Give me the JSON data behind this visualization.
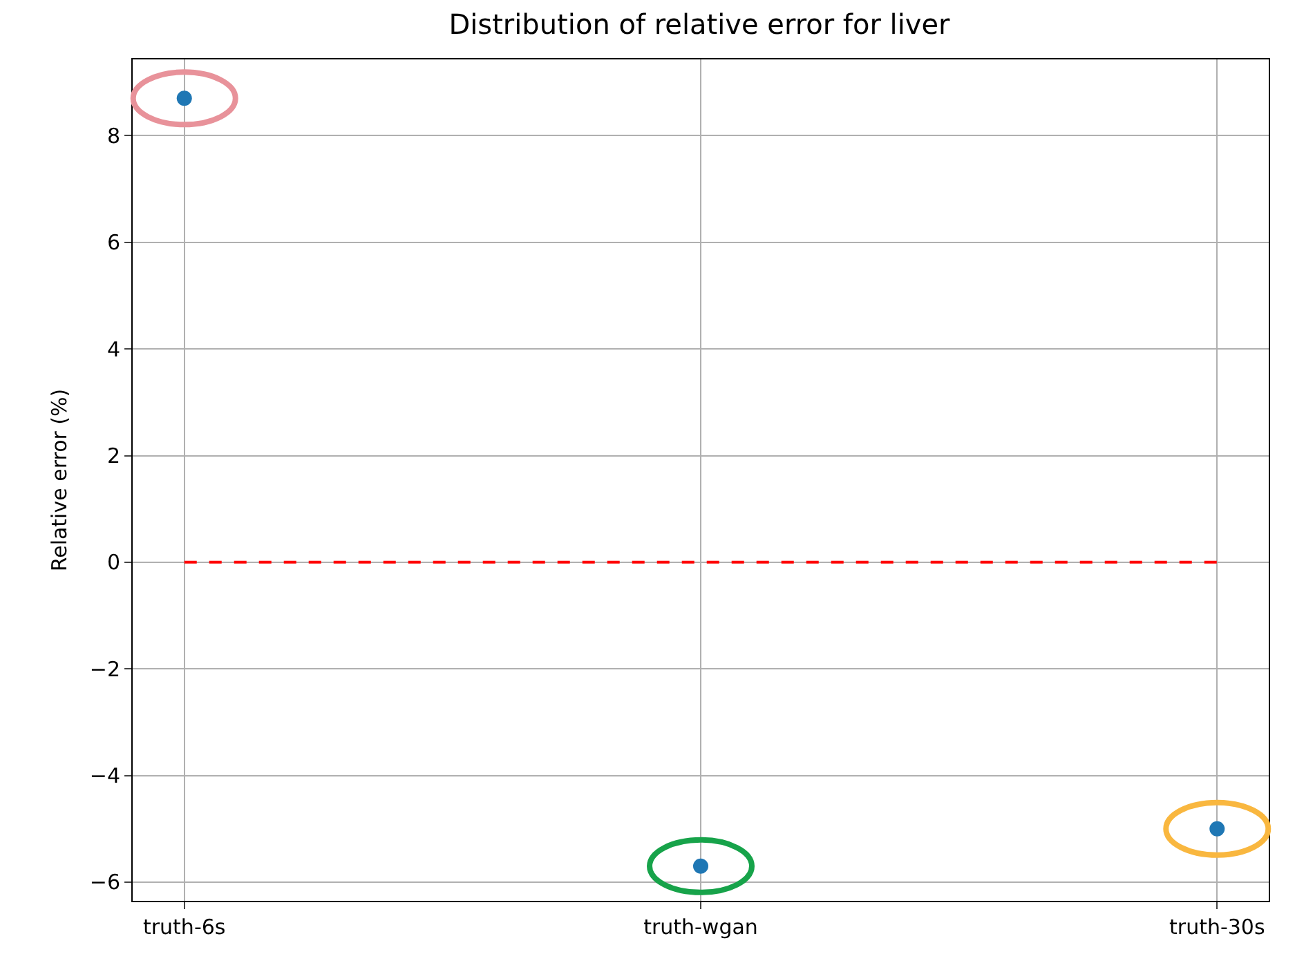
{
  "chart_data": {
    "type": "scatter",
    "title": "Distribution of relative error for liver",
    "ylabel": "Relative error (%)",
    "categories": [
      "truth-6s",
      "truth-wgan",
      "truth-30s"
    ],
    "series": [
      {
        "color": "#1f77b4",
        "values": [
          8.7,
          -5.7,
          -5.0
        ]
      }
    ],
    "ylim": [
      -6.35,
      9.43
    ],
    "yticks": [
      -6,
      -4,
      -2,
      0,
      2,
      4,
      6,
      8
    ],
    "grid": true,
    "marker": "circle",
    "ref_lines": [
      {
        "axis": "y",
        "value": 0,
        "color": "#ff0000",
        "line_style": "dashed"
      }
    ]
  }
}
